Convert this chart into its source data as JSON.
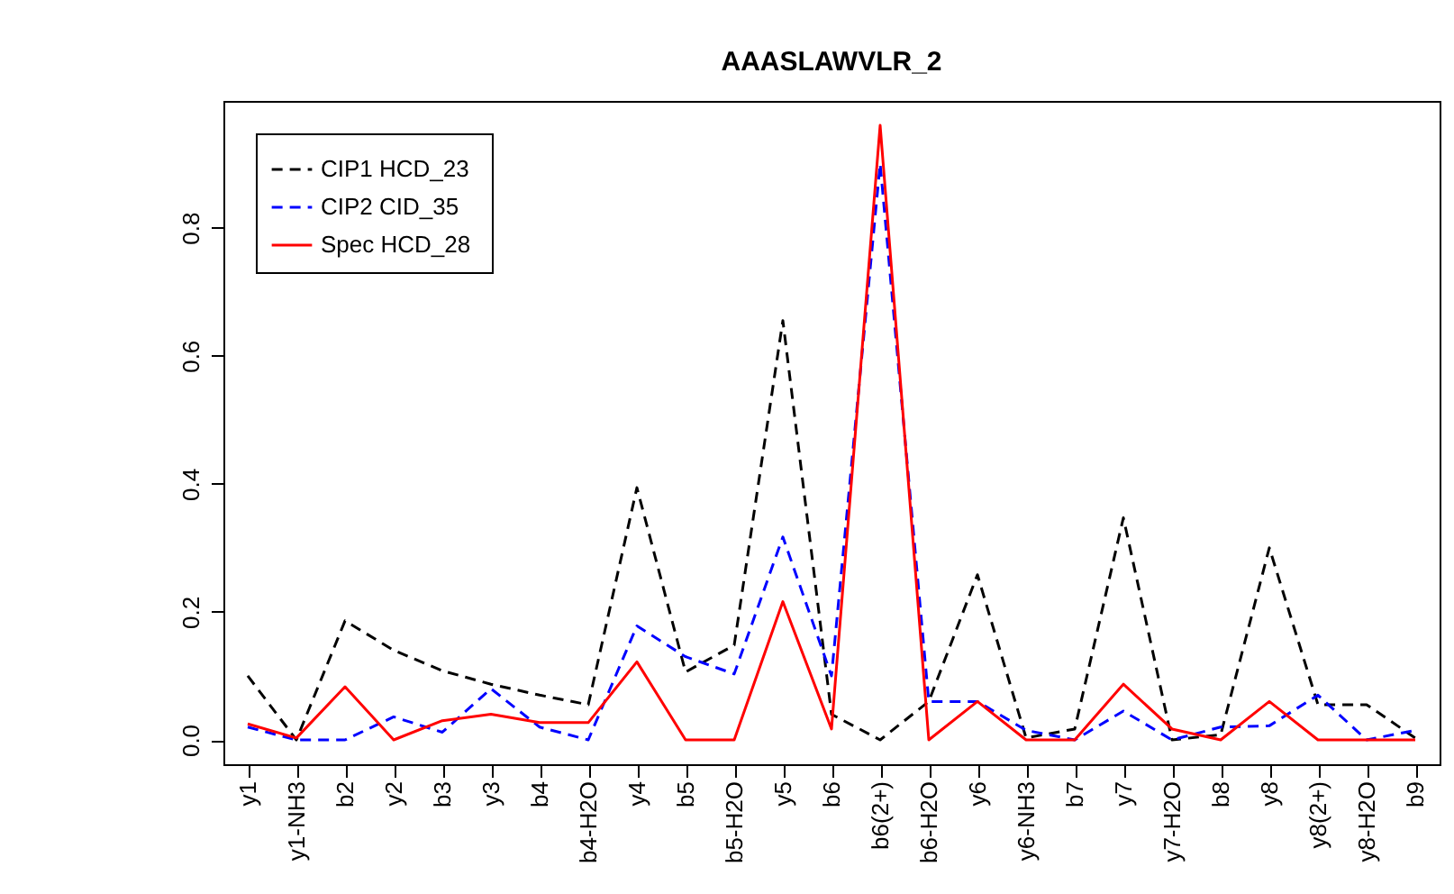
{
  "chart_data": {
    "type": "line",
    "title": "AAASLAWVLR_2",
    "categories": [
      "y1",
      "y1-NH3",
      "b2",
      "y2",
      "b3",
      "y3",
      "b4",
      "b4-H2O",
      "y4",
      "b5",
      "b5-H2O",
      "y5",
      "b6",
      "b6(2+)",
      "b6-H2O",
      "y6",
      "y6-NH3",
      "b7",
      "y7",
      "y7-H2O",
      "b8",
      "y8",
      "y8(2+)",
      "y8-H2O",
      "b9"
    ],
    "series": [
      {
        "name": "CIP1  HCD_23",
        "color": "#000000",
        "line_style": "dashed",
        "values": [
          0.1,
          0,
          0.186,
          0.14,
          0.108,
          0.087,
          0.07,
          0.055,
          0.394,
          0.106,
          0.148,
          0.655,
          0.04,
          0,
          0.06,
          0.258,
          0.003,
          0.017,
          0.347,
          0,
          0.008,
          0.3,
          0.055,
          0.055,
          0.003
        ]
      },
      {
        "name": "CIP2  CID_35",
        "color": "#0000ff",
        "line_style": "dashed",
        "values": [
          0.02,
          0,
          0,
          0.036,
          0.012,
          0.08,
          0.02,
          0,
          0.178,
          0.13,
          0.103,
          0.317,
          0.1,
          0.9,
          0.06,
          0.06,
          0.015,
          0,
          0.045,
          0,
          0.02,
          0.022,
          0.07,
          0,
          0.015
        ]
      },
      {
        "name": "Spec  HCD_28",
        "color": "#ff0000",
        "line_style": "solid",
        "values": [
          0.025,
          0.003,
          0.083,
          0,
          0.03,
          0.04,
          0.027,
          0.027,
          0.122,
          0,
          0,
          0.216,
          0.017,
          0.96,
          0,
          0.06,
          0,
          0,
          0.087,
          0.017,
          0,
          0.06,
          0,
          0,
          0
        ]
      }
    ],
    "ylim": [
      -0.038,
      0.998
    ],
    "yticks": [
      {
        "value": 0,
        "label": "0.0"
      },
      0.2,
      0.4,
      0.6,
      0.8
    ],
    "grid": false,
    "legend": "top left"
  }
}
